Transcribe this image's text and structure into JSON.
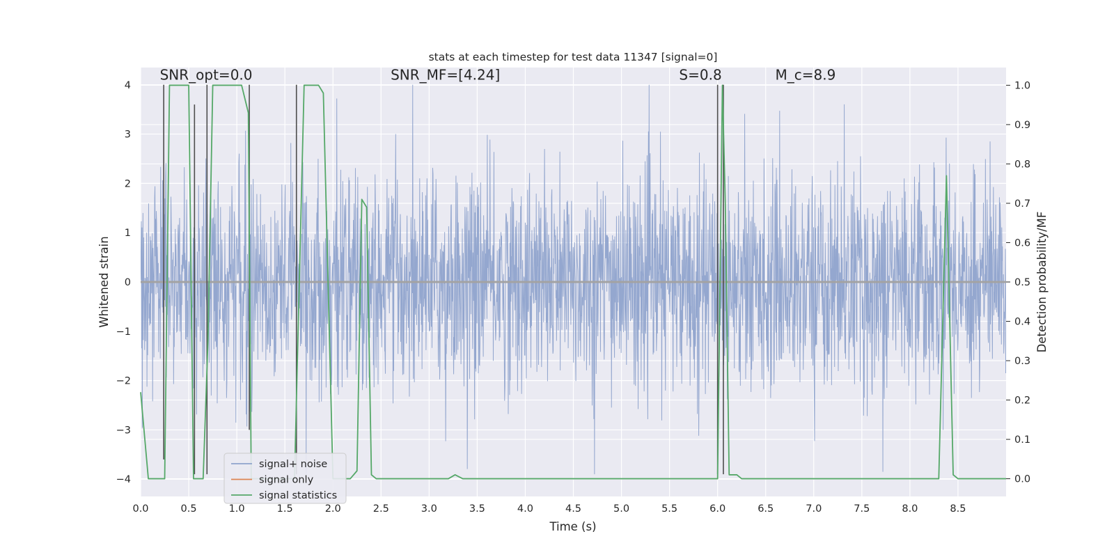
{
  "chart_data": {
    "type": "line",
    "title": "stats at each timestep for test data 11347 [signal=0]",
    "xlabel": "Time (s)",
    "ylabel": "Whitened strain",
    "ylabel_right": "Detection probability/MF",
    "xlim": [
      0,
      9.0
    ],
    "ylim": [
      -4.35,
      4.35
    ],
    "ylim_right": [
      -0.045,
      1.045
    ],
    "xticks": [
      0.0,
      0.5,
      1.0,
      1.5,
      2.0,
      2.5,
      3.0,
      3.5,
      4.0,
      4.5,
      5.0,
      5.5,
      6.0,
      6.5,
      7.0,
      7.5,
      8.0,
      8.5
    ],
    "xtick_labels": [
      "0.0",
      "0.5",
      "1.0",
      "1.5",
      "2.0",
      "2.5",
      "3.0",
      "3.5",
      "4.0",
      "4.5",
      "5.0",
      "5.5",
      "6.0",
      "6.5",
      "7.0",
      "7.5",
      "8.0",
      "8.5"
    ],
    "yticks": [
      -4,
      -3,
      -2,
      -1,
      0,
      1,
      2,
      3,
      4
    ],
    "ytick_labels": [
      "−4",
      "−3",
      "−2",
      "−1",
      "0",
      "1",
      "2",
      "3",
      "4"
    ],
    "yticks_right": [
      0.0,
      0.1,
      0.2,
      0.3,
      0.4,
      0.5,
      0.6,
      0.7,
      0.8,
      0.9,
      1.0
    ],
    "ytick_labels_right": [
      "0.0",
      "0.1",
      "0.2",
      "0.3",
      "0.4",
      "0.5",
      "0.6",
      "0.7",
      "0.8",
      "0.9",
      "1.0"
    ],
    "annotations": [
      {
        "text": "SNR_opt=0.0",
        "x": 0.2,
        "y": 4.1
      },
      {
        "text": "SNR_MF=[4.24]",
        "x": 2.6,
        "y": 4.1
      },
      {
        "text": "S=0.8",
        "x": 5.6,
        "y": 4.1
      },
      {
        "text": "M_c=8.9",
        "x": 6.6,
        "y": 4.1
      }
    ],
    "vertical_markers": {
      "color": "#4d4d4d",
      "segments": [
        {
          "x": 0.24,
          "y0": -3.6,
          "y1": 4.0
        },
        {
          "x": 0.56,
          "y0": -3.9,
          "y1": 3.6
        },
        {
          "x": 0.69,
          "y0": -3.9,
          "y1": 4.0
        },
        {
          "x": 1.13,
          "y0": -3.0,
          "y1": 4.0
        },
        {
          "x": 1.62,
          "y0": -3.9,
          "y1": 4.0
        },
        {
          "x": 6.0,
          "y0": -3.9,
          "y1": 4.0
        },
        {
          "x": 6.06,
          "y0": -3.9,
          "y1": 4.0
        }
      ]
    },
    "series": [
      {
        "name": "signal+ noise",
        "axis": "left",
        "color": "#8fa3cc",
        "description": "dense whitened noise trace, amplitude mostly within about +/-2.5 with peaks near +/-3.5",
        "noise_seed": 11347,
        "noise_points": 2600
      },
      {
        "name": "signal only",
        "axis": "left",
        "color": "#dd8452",
        "x": [
          0.0,
          9.0
        ],
        "y": [
          0.0,
          0.0
        ]
      },
      {
        "name": "signal statistics",
        "axis": "right",
        "color": "#55a868",
        "x": [
          0.0,
          0.08,
          0.15,
          0.25,
          0.3,
          0.35,
          0.5,
          0.55,
          0.6,
          0.65,
          0.7,
          0.75,
          0.8,
          1.05,
          1.12,
          1.15,
          1.2,
          1.6,
          1.65,
          1.7,
          1.85,
          1.9,
          2.0,
          2.18,
          2.25,
          2.3,
          2.35,
          2.4,
          2.45,
          2.5,
          2.9,
          3.0,
          3.2,
          3.27,
          3.35,
          6.0,
          6.05,
          6.08,
          6.12,
          6.2,
          6.25,
          6.3,
          8.3,
          8.38,
          8.45,
          8.5,
          9.0
        ],
        "y": [
          0.22,
          0.0,
          0.0,
          0.0,
          1.0,
          1.0,
          1.0,
          0.0,
          0.0,
          0.0,
          0.35,
          1.0,
          1.0,
          1.0,
          0.93,
          0.0,
          0.0,
          0.0,
          0.5,
          1.0,
          1.0,
          0.98,
          0.0,
          0.0,
          0.02,
          0.71,
          0.69,
          0.01,
          0.0,
          0.0,
          0.0,
          0.0,
          0.0,
          0.01,
          0.0,
          0.0,
          1.0,
          0.7,
          0.01,
          0.01,
          0.0,
          0.0,
          0.0,
          0.77,
          0.01,
          0.0,
          0.0
        ]
      }
    ],
    "legend": {
      "placement": "lower-left",
      "entries": [
        "signal+ noise",
        "signal only",
        "signal statistics"
      ]
    },
    "grid": true
  }
}
